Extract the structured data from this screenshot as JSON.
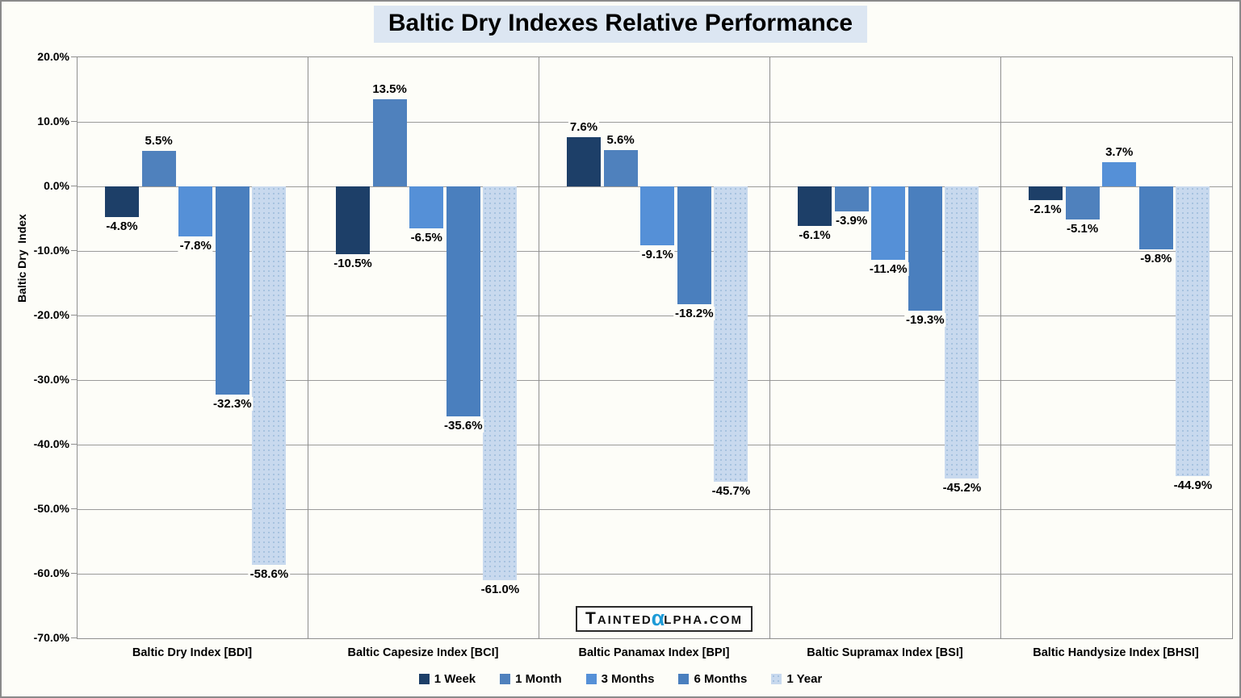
{
  "chart_data": {
    "type": "bar",
    "title": "Baltic Dry Indexes Relative Performance",
    "ylabel": "Baltic Dry  Index",
    "xlabel": "",
    "ylim": [
      -70,
      20
    ],
    "ytick_step": 10,
    "ytick_format": "percent_1dp",
    "grid": true,
    "legend_position": "bottom",
    "categories": [
      "Baltic Dry Index [BDI]",
      "Baltic Capesize Index [BCI]",
      "Baltic Panamax Index [BPI]",
      "Baltic Supramax Index [BSI]",
      "Baltic Handysize Index [BHSI]"
    ],
    "series": [
      {
        "name": "1 Week",
        "color": "#1d3f68",
        "values": [
          -4.8,
          -10.5,
          7.6,
          -6.1,
          -2.1
        ]
      },
      {
        "name": "1 Month",
        "color": "#4f81bd",
        "values": [
          5.5,
          13.5,
          5.6,
          -3.9,
          -5.1
        ]
      },
      {
        "name": "3 Months",
        "color": "#5590d7",
        "values": [
          -7.8,
          -6.5,
          -9.1,
          -11.4,
          3.7
        ]
      },
      {
        "name": "6 Months",
        "color": "#4a7fbe",
        "values": [
          -32.3,
          -35.6,
          -18.2,
          -19.3,
          -9.8
        ]
      },
      {
        "name": "1 Year",
        "color": "#c8d9ee",
        "pattern": "dots",
        "dot_color": "#a3c0de",
        "values": [
          -58.6,
          -61.0,
          -45.7,
          -45.2,
          -44.9
        ]
      }
    ],
    "data_labels": true
  },
  "logo": {
    "part1": "Tainted",
    "alpha": "α",
    "part2": "lpha.com",
    "alpha_color": "#1d9bd7"
  },
  "colors": {
    "title_bg": "#dce6f2",
    "background": "#fdfdf8",
    "grid": "#9a9a9a",
    "axis": "#8f8f8f",
    "label_text": "#000000"
  }
}
